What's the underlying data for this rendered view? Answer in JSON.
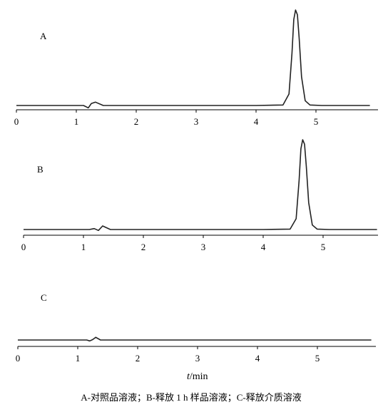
{
  "chart_data": [
    {
      "type": "line",
      "panel_label": "A",
      "xlim": [
        0,
        6
      ],
      "xticks": [
        "0",
        "1",
        "2",
        "3",
        "4",
        "5"
      ],
      "series": [
        {
          "x": [
            0,
            1.0,
            1.12,
            1.2,
            1.25,
            1.32,
            1.45,
            2,
            3,
            4,
            4.45,
            4.55,
            4.6,
            4.63,
            4.66,
            4.69,
            4.72,
            4.76,
            4.82,
            4.9,
            5.1,
            5.9
          ],
          "y": [
            0,
            0,
            0.0,
            -0.025,
            0.02,
            0.035,
            0.0,
            0,
            0,
            0,
            0.005,
            0.12,
            0.55,
            0.9,
            1.0,
            0.95,
            0.7,
            0.3,
            0.05,
            0.005,
            0,
            0
          ]
        }
      ]
    },
    {
      "type": "line",
      "panel_label": "B",
      "xlim": [
        0,
        6
      ],
      "xticks": [
        "0",
        "1",
        "2",
        "3",
        "4",
        "5"
      ],
      "series": [
        {
          "x": [
            0,
            1.0,
            1.1,
            1.18,
            1.25,
            1.32,
            1.45,
            2,
            3,
            4,
            4.45,
            4.55,
            4.6,
            4.63,
            4.66,
            4.69,
            4.72,
            4.76,
            4.82,
            4.9,
            5.1,
            5.9
          ],
          "y": [
            0,
            0,
            0.0,
            0.01,
            -0.01,
            0.04,
            0.0,
            0,
            0,
            0,
            0.005,
            0.12,
            0.55,
            0.9,
            1.0,
            0.95,
            0.7,
            0.3,
            0.05,
            0.005,
            0,
            0
          ]
        }
      ]
    },
    {
      "type": "line",
      "panel_label": "C",
      "xlim": [
        0,
        6
      ],
      "xticks": [
        "0",
        "1",
        "2",
        "3",
        "4",
        "5"
      ],
      "series": [
        {
          "x": [
            0,
            1.0,
            1.15,
            1.2,
            1.25,
            1.3,
            1.38,
            2,
            3,
            4,
            5,
            5.9
          ],
          "y": [
            0,
            0,
            0.0,
            -0.01,
            0.005,
            0.03,
            0.0,
            0,
            0,
            0,
            0,
            0
          ]
        }
      ]
    }
  ],
  "xlabel_italic": "t",
  "xlabel_rest": "/min",
  "caption": "A-对照品溶液；B-释放 1 h 样品溶液；C-释放介质溶液"
}
